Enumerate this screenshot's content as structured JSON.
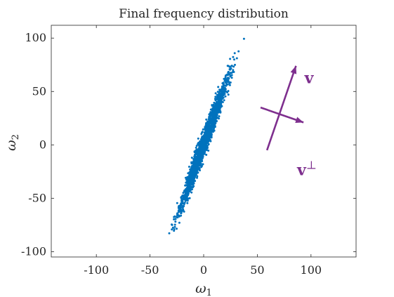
{
  "chart_data": {
    "type": "scatter",
    "title": "Final frequency distribution",
    "xlabel": "ω",
    "xlabel_sub": "1",
    "ylabel": "ω",
    "ylabel_sub": "2",
    "xlim": [
      -142,
      142
    ],
    "ylim": [
      -105,
      112
    ],
    "xticks": [
      -100,
      -50,
      0,
      50,
      100
    ],
    "yticks": [
      -100,
      -50,
      0,
      50,
      100
    ],
    "grid": false,
    "colors": {
      "points": "#0072BD",
      "vectors": "#7E2F8E",
      "axes": "#262626"
    },
    "series": [
      {
        "points_description_free": true,
        "line_start": [
          -37,
          -105
        ],
        "line_end": [
          39,
          112
        ],
        "spread": 2.2,
        "count": 2000
      }
    ],
    "annotations": [
      {
        "label": "v",
        "sup": "",
        "from": [
          59,
          -5
        ],
        "to": [
          86,
          74
        ],
        "label_at": [
          94,
          63
        ]
      },
      {
        "label": "v",
        "sup": "⊥",
        "from": [
          53,
          35
        ],
        "to": [
          93,
          21
        ],
        "label_at": [
          87,
          -23
        ]
      }
    ]
  }
}
